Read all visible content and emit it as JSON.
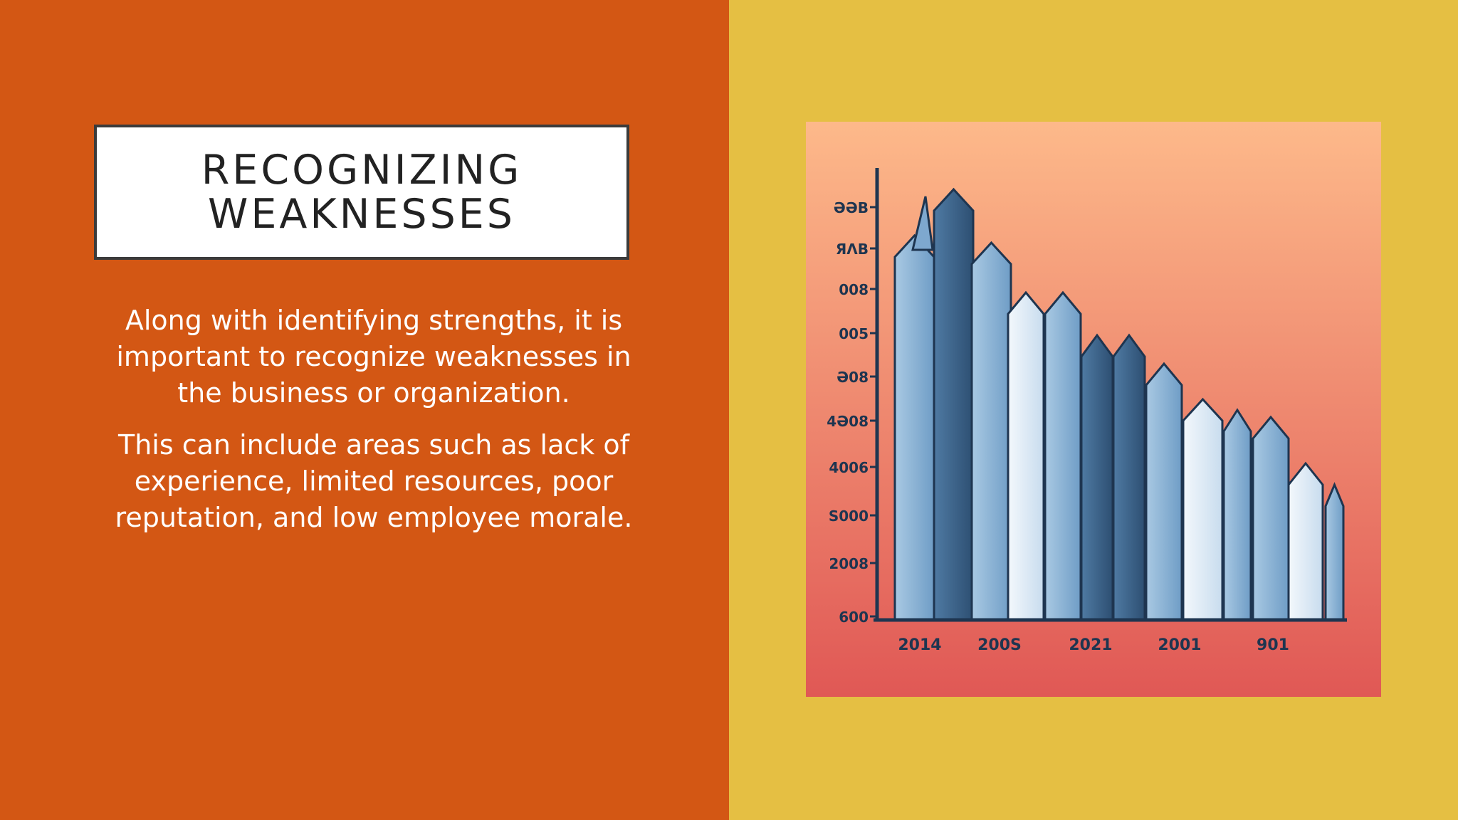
{
  "slide": {
    "title": "RECOGNIZING\nWEAKNESSES",
    "paragraphs": [
      "Along with identifying strengths, it is important to recognize weaknesses in the business or organization.",
      "This can include areas such as lack of experience, limited resources, poor reputation, and low employee morale."
    ]
  },
  "colors": {
    "left_background": "#d35714",
    "right_background": "#e5bf43",
    "chart_background_top": "#fdb98a",
    "chart_background_bottom": "#e05855"
  },
  "chart_image": {
    "y_tick_labels": [
      "ƏƏB",
      "ЯΛΒ",
      "008",
      "005",
      "Ə08",
      "4Ə08",
      "4006",
      "S000",
      "2008",
      "600"
    ],
    "x_tick_labels": [
      "2014",
      "200S",
      "2021",
      "2001",
      "901"
    ]
  }
}
